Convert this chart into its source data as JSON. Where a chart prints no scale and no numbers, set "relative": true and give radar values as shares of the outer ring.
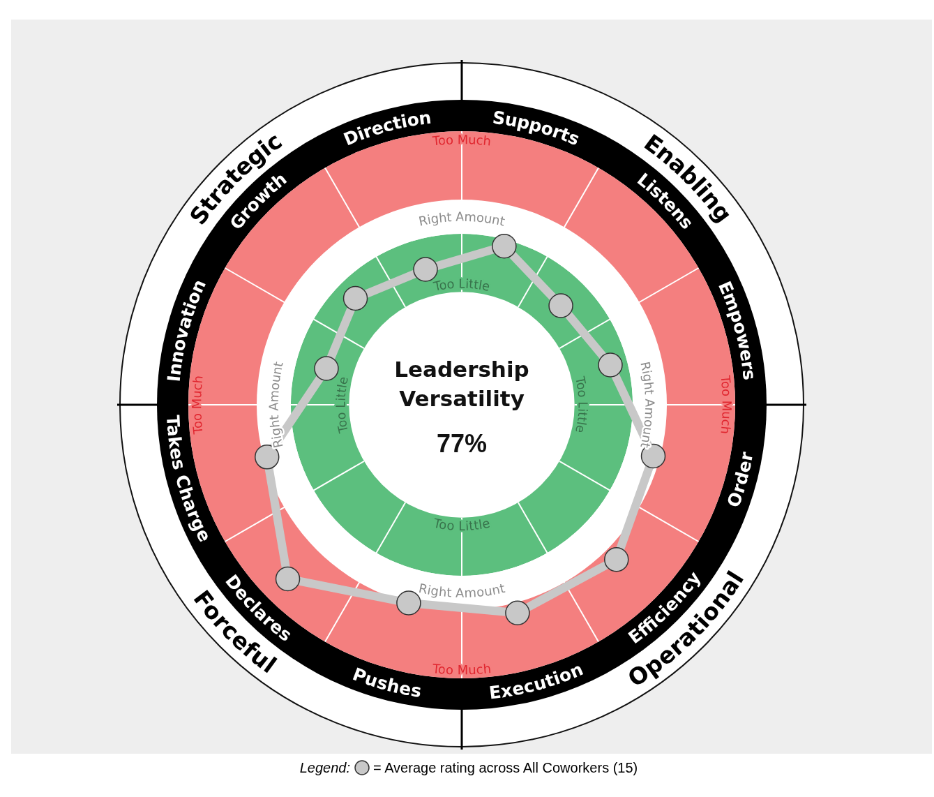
{
  "chart_data": {
    "type": "radar",
    "title": "Leadership Versatility",
    "subtitle": "77%",
    "categories": [
      "Supports",
      "Listens",
      "Empowers",
      "Order",
      "Efficiency",
      "Execution",
      "Pushes",
      "Declares",
      "Takes Charge",
      "Innovation",
      "Growth",
      "Direction"
    ],
    "relative": true,
    "series": [
      {
        "name": "= Average rating across All Coworkers (15)",
        "color": "#c8c8c8",
        "values": [
          0.48,
          0.41,
          0.45,
          0.58,
          0.64,
          0.63,
          0.6,
          0.72,
          0.59,
          0.41,
          0.44,
          0.41
        ]
      }
    ],
    "annotations": [
      "Enabling",
      "Operational",
      "Forceful",
      "Strategic",
      "Too Little",
      "Right Amount",
      "Too Much"
    ],
    "legend_title": "Legend:",
    "legend": "bottom",
    "marker": "circle",
    "line_style": "solid",
    "grid": true
  }
}
